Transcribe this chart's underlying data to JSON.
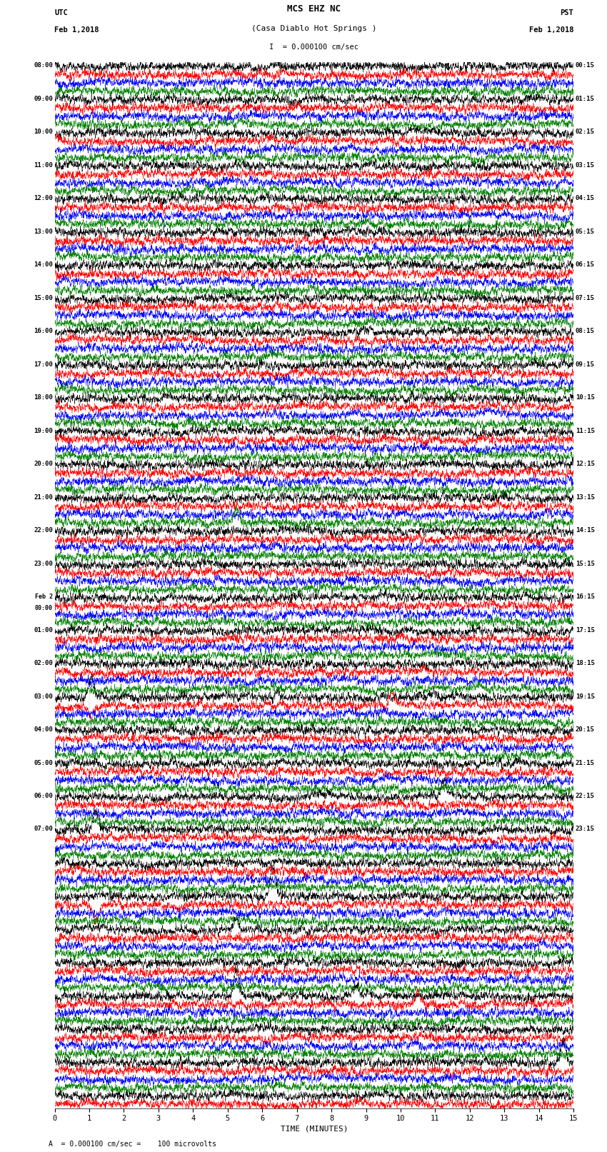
{
  "title_line1": "MCS EHZ NC",
  "title_line2": "(Casa Diablo Hot Springs )",
  "scale_label": "I  = 0.000100 cm/sec",
  "left_header_line1": "UTC",
  "left_header_line2": "Feb 1,2018",
  "right_header_line1": "PST",
  "right_header_line2": "Feb 1,2018",
  "xlabel": "TIME (MINUTES)",
  "bottom_note": "= 0.000100 cm/sec =    100 microvolts",
  "bottom_note_prefix": "A",
  "utc_times": [
    "08:00",
    "",
    "",
    "",
    "09:00",
    "",
    "",
    "",
    "10:00",
    "",
    "",
    "",
    "11:00",
    "",
    "",
    "",
    "12:00",
    "",
    "",
    "",
    "13:00",
    "",
    "",
    "",
    "14:00",
    "",
    "",
    "",
    "15:00",
    "",
    "",
    "",
    "16:00",
    "",
    "",
    "",
    "17:00",
    "",
    "",
    "",
    "18:00",
    "",
    "",
    "",
    "19:00",
    "",
    "",
    "",
    "20:00",
    "",
    "",
    "",
    "21:00",
    "",
    "",
    "",
    "22:00",
    "",
    "",
    "",
    "23:00",
    "",
    "",
    "",
    "Feb 2\n00:00",
    "",
    "",
    "",
    "01:00",
    "",
    "",
    "",
    "02:00",
    "",
    "",
    "",
    "03:00",
    "",
    "",
    "",
    "04:00",
    "",
    "",
    "",
    "05:00",
    "",
    "",
    "",
    "06:00",
    "",
    "",
    "",
    "07:00",
    "",
    ""
  ],
  "pst_times": [
    "00:15",
    "",
    "",
    "",
    "01:15",
    "",
    "",
    "",
    "02:15",
    "",
    "",
    "",
    "03:15",
    "",
    "",
    "",
    "04:15",
    "",
    "",
    "",
    "05:15",
    "",
    "",
    "",
    "06:15",
    "",
    "",
    "",
    "07:15",
    "",
    "",
    "",
    "08:15",
    "",
    "",
    "",
    "09:15",
    "",
    "",
    "",
    "10:15",
    "",
    "",
    "",
    "11:15",
    "",
    "",
    "",
    "12:15",
    "",
    "",
    "",
    "13:15",
    "",
    "",
    "",
    "14:15",
    "",
    "",
    "",
    "15:15",
    "",
    "",
    "",
    "16:15",
    "",
    "",
    "",
    "17:15",
    "",
    "",
    "",
    "18:15",
    "",
    "",
    "",
    "19:15",
    "",
    "",
    "",
    "20:15",
    "",
    "",
    "",
    "21:15",
    "",
    "",
    "",
    "22:15",
    "",
    "",
    "",
    "23:15",
    "",
    ""
  ],
  "num_rows": 126,
  "colors_cycle": [
    "black",
    "red",
    "blue",
    "green"
  ],
  "bg_color": "white",
  "x_ticks": [
    0,
    1,
    2,
    3,
    4,
    5,
    6,
    7,
    8,
    9,
    10,
    11,
    12,
    13,
    14,
    15
  ],
  "fig_width": 8.5,
  "fig_height": 16.13,
  "dpi": 100
}
